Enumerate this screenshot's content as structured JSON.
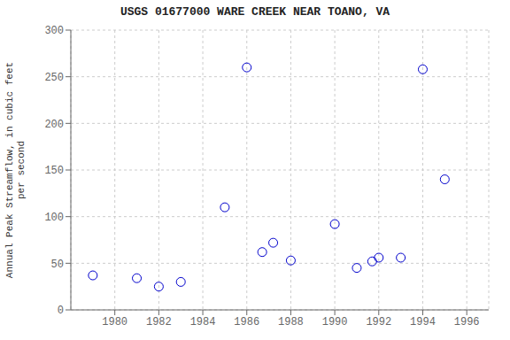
{
  "chart_data": {
    "type": "scatter",
    "title": "USGS 01677000 WARE CREEK NEAR TOANO, VA",
    "ylabel": "Annual Peak Streamflow, in cubic feet\nper second",
    "x": [
      1979,
      1981,
      1982,
      1983,
      1985,
      1986,
      1986.7,
      1987.2,
      1988,
      1990,
      1991,
      1991.7,
      1992,
      1993,
      1994,
      1995
    ],
    "values": [
      37,
      34,
      25,
      30,
      110,
      260,
      62,
      72,
      53,
      92,
      45,
      52,
      56,
      56,
      258,
      140
    ],
    "color": "#0000cc",
    "marker": "circle",
    "xlim": [
      1978,
      1997
    ],
    "ylim": [
      0,
      300
    ],
    "xticks": [
      1980,
      1982,
      1984,
      1986,
      1988,
      1990,
      1992,
      1994,
      1996
    ],
    "yticks": [
      0,
      50,
      100,
      150,
      200,
      250,
      300
    ],
    "grid": true
  }
}
